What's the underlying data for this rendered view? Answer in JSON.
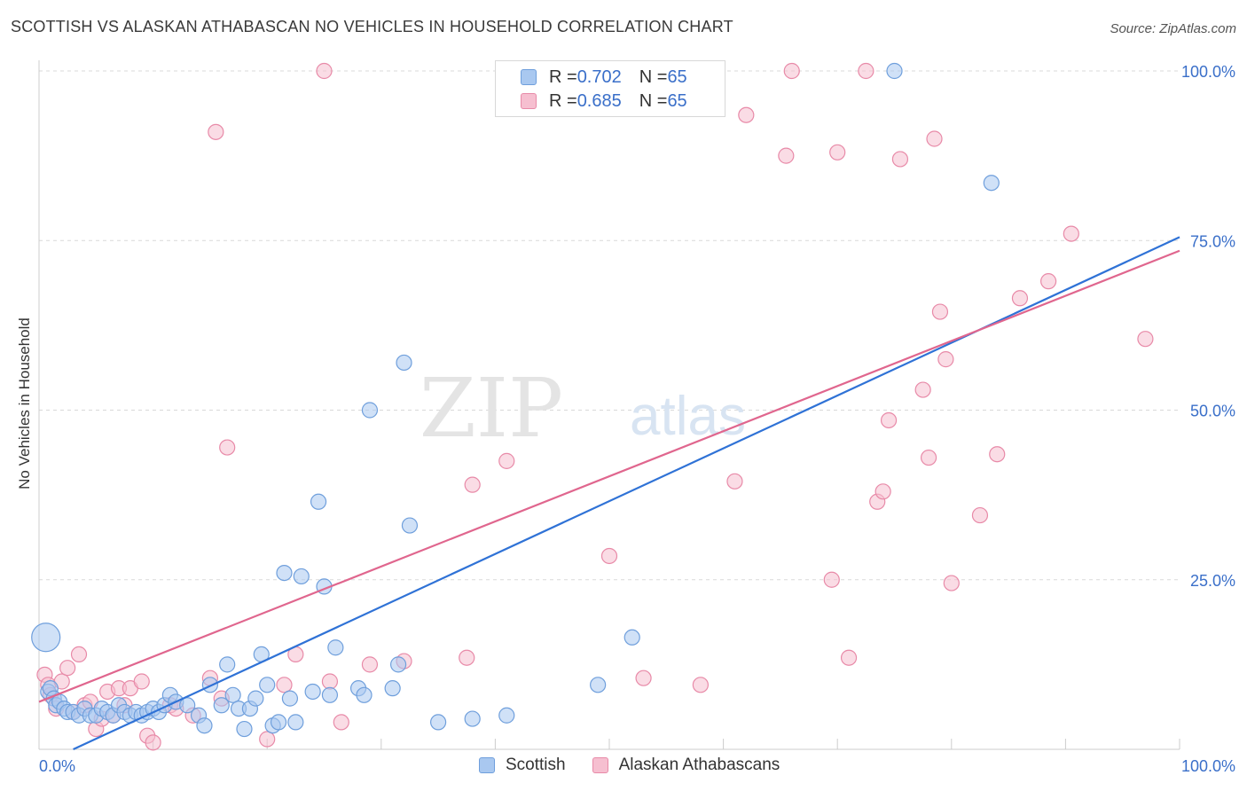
{
  "title": "SCOTTISH VS ALASKAN ATHABASCAN NO VEHICLES IN HOUSEHOLD CORRELATION CHART",
  "source": "Source: ZipAtlas.com",
  "watermark": {
    "zip": "ZIP",
    "atlas": "atlas"
  },
  "legend": {
    "rows": [
      {
        "r_label": "R = ",
        "r_value": "0.702",
        "n_label": "N = ",
        "n_value": "65"
      },
      {
        "r_label": "R = ",
        "r_value": "0.685",
        "n_label": "N = ",
        "n_value": "65"
      }
    ]
  },
  "bottom_legend": [
    "Scottish",
    "Alaskan Athabascans"
  ],
  "colors": {
    "scottish_fill": "#a9c8f0",
    "scottish_stroke": "#6f9fdc",
    "scottish_line": "#2f72d6",
    "alaskan_fill": "#f6bfd0",
    "alaskan_stroke": "#e88aa8",
    "alaskan_line": "#e0668e",
    "tick_label": "#3a6fc9",
    "grid": "#d9d9d9"
  },
  "chart_data": {
    "type": "scatter",
    "xlabel": "",
    "ylabel": "No Vehicles in Household",
    "xlim": [
      0,
      100
    ],
    "ylim": [
      0,
      100
    ],
    "x_tick_labels": [
      {
        "value": 0,
        "label": "0.0%"
      },
      {
        "value": 100,
        "label": "100.0%"
      }
    ],
    "y_tick_labels": [
      {
        "value": 25,
        "label": "25.0%"
      },
      {
        "value": 50,
        "label": "50.0%"
      },
      {
        "value": 75,
        "label": "75.0%"
      },
      {
        "value": 100,
        "label": "100.0%"
      }
    ],
    "grid": true,
    "series": [
      {
        "name": "Scottish",
        "points": [
          [
            0.6,
            16.5
          ],
          [
            0.8,
            8.5
          ],
          [
            1.0,
            9.0
          ],
          [
            1.3,
            7.5
          ],
          [
            1.5,
            6.5
          ],
          [
            1.8,
            7.0
          ],
          [
            2.2,
            6.0
          ],
          [
            2.5,
            5.5
          ],
          [
            3.0,
            5.5
          ],
          [
            3.5,
            5.0
          ],
          [
            4.0,
            6.0
          ],
          [
            4.5,
            5.0
          ],
          [
            5.0,
            5.0
          ],
          [
            5.5,
            6.0
          ],
          [
            6.0,
            5.5
          ],
          [
            6.5,
            5.0
          ],
          [
            7.0,
            6.5
          ],
          [
            7.5,
            5.5
          ],
          [
            8.0,
            5.0
          ],
          [
            8.5,
            5.5
          ],
          [
            9.0,
            5.0
          ],
          [
            9.5,
            5.5
          ],
          [
            10.0,
            6.0
          ],
          [
            10.5,
            5.5
          ],
          [
            11.0,
            6.5
          ],
          [
            11.5,
            8.0
          ],
          [
            12.0,
            7.0
          ],
          [
            13.0,
            6.5
          ],
          [
            14.0,
            5.0
          ],
          [
            14.5,
            3.5
          ],
          [
            15.0,
            9.5
          ],
          [
            16.0,
            6.5
          ],
          [
            16.5,
            12.5
          ],
          [
            17.0,
            8.0
          ],
          [
            17.5,
            6.0
          ],
          [
            18.0,
            3.0
          ],
          [
            18.5,
            6.0
          ],
          [
            19.0,
            7.5
          ],
          [
            19.5,
            14.0
          ],
          [
            20.0,
            9.5
          ],
          [
            20.5,
            3.5
          ],
          [
            21.0,
            4.0
          ],
          [
            21.5,
            26.0
          ],
          [
            22.0,
            7.5
          ],
          [
            22.5,
            4.0
          ],
          [
            23.0,
            25.5
          ],
          [
            24.0,
            8.5
          ],
          [
            24.5,
            36.5
          ],
          [
            25.0,
            24.0
          ],
          [
            25.5,
            8.0
          ],
          [
            26.0,
            15.0
          ],
          [
            28.0,
            9.0
          ],
          [
            28.5,
            8.0
          ],
          [
            29.0,
            50.0
          ],
          [
            31.0,
            9.0
          ],
          [
            31.5,
            12.5
          ],
          [
            32.0,
            57.0
          ],
          [
            32.5,
            33.0
          ],
          [
            35.0,
            4.0
          ],
          [
            38.0,
            4.5
          ],
          [
            41.0,
            5.0
          ],
          [
            49.0,
            9.5
          ],
          [
            52.0,
            16.5
          ],
          [
            75.0,
            100.0
          ],
          [
            83.5,
            83.5
          ]
        ]
      },
      {
        "name": "Alaskan Athabascans",
        "points": [
          [
            0.5,
            11.0
          ],
          [
            0.8,
            9.5
          ],
          [
            1.0,
            8.0
          ],
          [
            1.5,
            6.0
          ],
          [
            2.0,
            10.0
          ],
          [
            2.5,
            12.0
          ],
          [
            3.0,
            5.5
          ],
          [
            3.5,
            14.0
          ],
          [
            4.0,
            6.5
          ],
          [
            4.5,
            7.0
          ],
          [
            5.0,
            3.0
          ],
          [
            5.5,
            4.5
          ],
          [
            6.0,
            8.5
          ],
          [
            6.5,
            5.0
          ],
          [
            7.0,
            9.0
          ],
          [
            7.5,
            6.5
          ],
          [
            8.0,
            9.0
          ],
          [
            9.0,
            10.0
          ],
          [
            9.5,
            2.0
          ],
          [
            10.0,
            1.0
          ],
          [
            11.5,
            6.5
          ],
          [
            12.0,
            6.0
          ],
          [
            13.5,
            5.0
          ],
          [
            15.0,
            10.5
          ],
          [
            15.5,
            91.0
          ],
          [
            16.0,
            7.5
          ],
          [
            16.5,
            44.5
          ],
          [
            20.0,
            1.5
          ],
          [
            21.5,
            9.5
          ],
          [
            22.5,
            14.0
          ],
          [
            25.0,
            100.0
          ],
          [
            25.5,
            10.0
          ],
          [
            26.5,
            4.0
          ],
          [
            29.0,
            12.5
          ],
          [
            32.0,
            13.0
          ],
          [
            37.5,
            13.5
          ],
          [
            38.0,
            39.0
          ],
          [
            41.0,
            42.5
          ],
          [
            50.0,
            28.5
          ],
          [
            53.0,
            10.5
          ],
          [
            58.0,
            9.5
          ],
          [
            61.0,
            39.5
          ],
          [
            62.0,
            93.5
          ],
          [
            65.5,
            87.5
          ],
          [
            66.0,
            100.0
          ],
          [
            69.5,
            25.0
          ],
          [
            70.0,
            88.0
          ],
          [
            71.0,
            13.5
          ],
          [
            72.5,
            100.0
          ],
          [
            73.5,
            36.5
          ],
          [
            74.0,
            38.0
          ],
          [
            74.5,
            48.5
          ],
          [
            75.5,
            87.0
          ],
          [
            77.5,
            53.0
          ],
          [
            78.0,
            43.0
          ],
          [
            78.5,
            90.0
          ],
          [
            79.0,
            64.5
          ],
          [
            79.5,
            57.5
          ],
          [
            80.0,
            24.5
          ],
          [
            82.5,
            34.5
          ],
          [
            84.0,
            43.5
          ],
          [
            86.0,
            66.5
          ],
          [
            88.5,
            69.0
          ],
          [
            90.5,
            76.0
          ],
          [
            97.0,
            60.5
          ]
        ]
      }
    ],
    "trendlines": [
      {
        "name": "Scottish",
        "x0": 3,
        "y0": 0,
        "x1": 100,
        "y1": 75.5
      },
      {
        "name": "Alaskan Athabascans",
        "x0": 0,
        "y0": 7,
        "x1": 100,
        "y1": 73.5
      }
    ]
  }
}
